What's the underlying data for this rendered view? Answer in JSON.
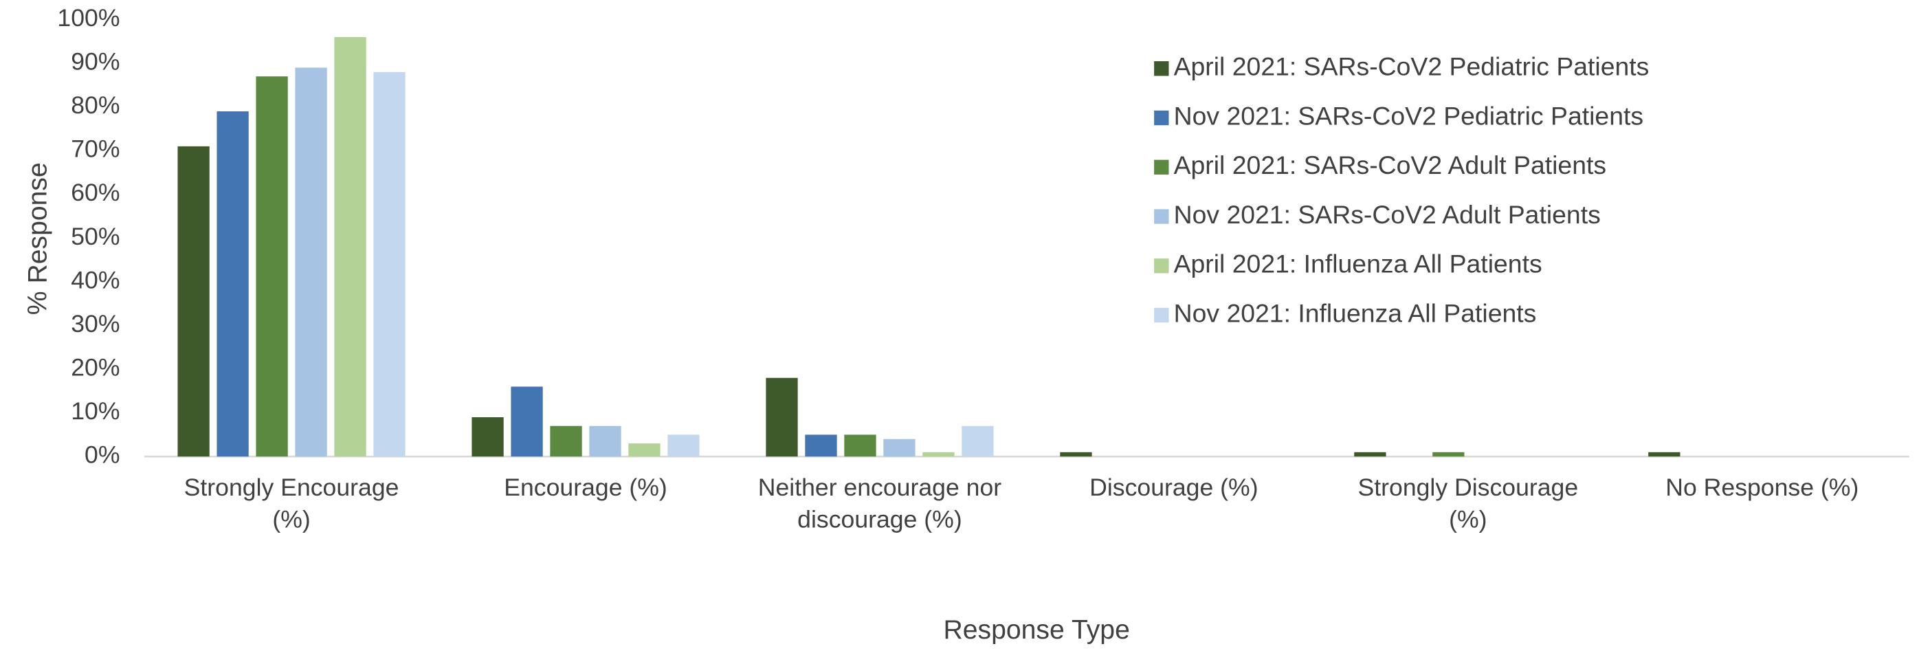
{
  "chart_data": {
    "type": "bar",
    "x_label": "Response Type",
    "y_label": "% Response",
    "categories": [
      "Strongly Encourage (%)",
      "Encourage (%)",
      "Neither encourage nor discourage (%)",
      "Discourage (%)",
      "Strongly Discourage (%)",
      "No Response (%)"
    ],
    "series": [
      {
        "name": "April 2021: SARs-CoV2 Pediatric Patients",
        "color": "#3e5a2b",
        "values": [
          71,
          9,
          18,
          1,
          1,
          1
        ]
      },
      {
        "name": "Nov 2021: SARs-CoV2 Pediatric Patients",
        "color": "#4475b3",
        "values": [
          79,
          16,
          5,
          0,
          0,
          0
        ]
      },
      {
        "name": "April 2021: SARs-CoV2 Adult Patients",
        "color": "#5c8940",
        "values": [
          87,
          7,
          5,
          0,
          1,
          0
        ]
      },
      {
        "name": "Nov 2021: SARs-CoV2 Adult Patients",
        "color": "#a6c3e3",
        "values": [
          89,
          7,
          4,
          0,
          0,
          0
        ]
      },
      {
        "name": "April 2021: Influenza All Patients",
        "color": "#b2d296",
        "values": [
          96,
          3,
          1,
          0,
          0,
          0
        ]
      },
      {
        "name": "Nov 2021: Influenza All Patients",
        "color": "#c3d8ee",
        "values": [
          88,
          5,
          7,
          0,
          0,
          0
        ]
      }
    ],
    "ylim": [
      0,
      100
    ],
    "yticks": [
      {
        "value": 0,
        "label": "0%"
      },
      {
        "value": 10,
        "label": "10%"
      },
      {
        "value": 20,
        "label": "20%"
      },
      {
        "value": 30,
        "label": "30%"
      },
      {
        "value": 40,
        "label": "40%"
      },
      {
        "value": 50,
        "label": "50%"
      },
      {
        "value": 60,
        "label": "60%"
      },
      {
        "value": 70,
        "label": "70%"
      },
      {
        "value": 80,
        "label": "80%"
      },
      {
        "value": 90,
        "label": "90%"
      },
      {
        "value": 100,
        "label": "100%"
      }
    ],
    "grid": false,
    "legend": "upper right"
  }
}
